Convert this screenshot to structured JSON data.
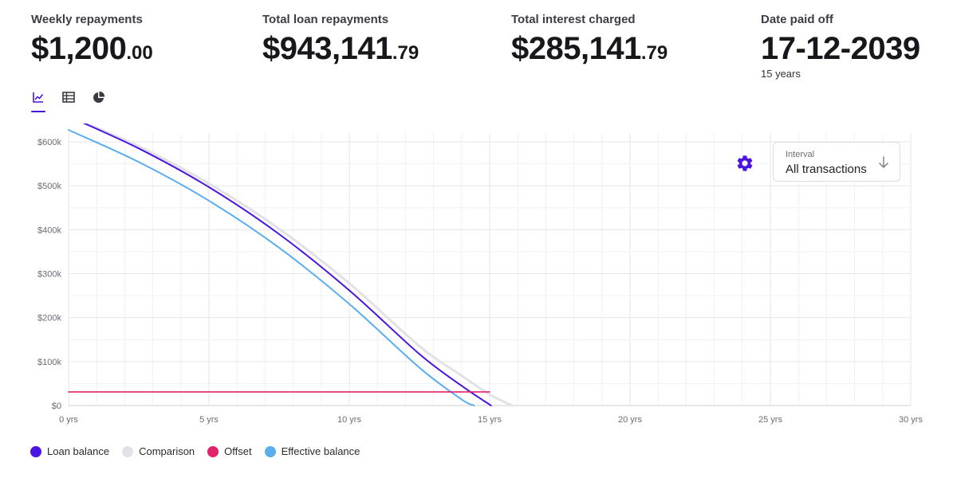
{
  "summary": {
    "weekly": {
      "label": "Weekly repayments",
      "dollars": "$1,200",
      "cents": ".00"
    },
    "total": {
      "label": "Total loan repayments",
      "dollars": "$943,141",
      "cents": ".79"
    },
    "interest": {
      "label": "Total interest charged",
      "dollars": "$285,141",
      "cents": ".79"
    },
    "payoff": {
      "label": "Date paid off",
      "value": "17-12-2039",
      "sub": "15 years"
    }
  },
  "view_toggle": [
    {
      "name": "line-chart-icon",
      "active": true
    },
    {
      "name": "table-icon",
      "active": false
    },
    {
      "name": "pie-chart-icon",
      "active": false
    }
  ],
  "settings_icon": "gear-icon",
  "interval": {
    "label": "Interval",
    "value": "All transactions",
    "icon": "arrow-down-icon"
  },
  "colors": {
    "accent": "#4b14e0",
    "loan": "#4b14e0",
    "comparison": "#e2e2e6",
    "offset": "#e0236b",
    "effective": "#5aaeee"
  },
  "chart_data": {
    "type": "line",
    "xlim": [
      0,
      30
    ],
    "ylim": [
      0,
      620000
    ],
    "x_ticks": [
      0,
      5,
      10,
      15,
      20,
      25,
      30
    ],
    "x_tick_labels": [
      "0 yrs",
      "5 yrs",
      "10 yrs",
      "15 yrs",
      "20 yrs",
      "25 yrs",
      "30 yrs"
    ],
    "y_ticks": [
      0,
      100000,
      200000,
      300000,
      400000,
      500000,
      600000
    ],
    "y_tick_labels": [
      "$0",
      "$100k",
      "$200k",
      "$300k",
      "$400k",
      "$500k",
      "$600k"
    ],
    "grid": true,
    "legend_position": "bottom-left",
    "series": [
      {
        "name": "Comparison",
        "color": "#e2e2e6",
        "x": [
          0,
          2.5,
          5,
          7.5,
          10,
          12.5,
          14,
          15,
          15.8
        ],
        "y": [
          658000,
          590000,
          505000,
          402000,
          278000,
          135000,
          68000,
          25000,
          0
        ]
      },
      {
        "name": "Loan balance",
        "color": "#4b14e0",
        "x": [
          0,
          2.5,
          5,
          7.5,
          10,
          12.5,
          14,
          15.05
        ],
        "y": [
          658000,
          585000,
          497000,
          390000,
          262000,
          117000,
          45000,
          0
        ]
      },
      {
        "name": "Effective balance",
        "color": "#5aaeee",
        "x": [
          0,
          2.5,
          5,
          7.5,
          10,
          12.5,
          14,
          14.45
        ],
        "y": [
          627000,
          554000,
          466000,
          359000,
          231000,
          86000,
          14000,
          0
        ]
      },
      {
        "name": "Offset",
        "color": "#e0236b",
        "x": [
          0,
          15
        ],
        "y": [
          31000,
          31000
        ]
      }
    ]
  }
}
